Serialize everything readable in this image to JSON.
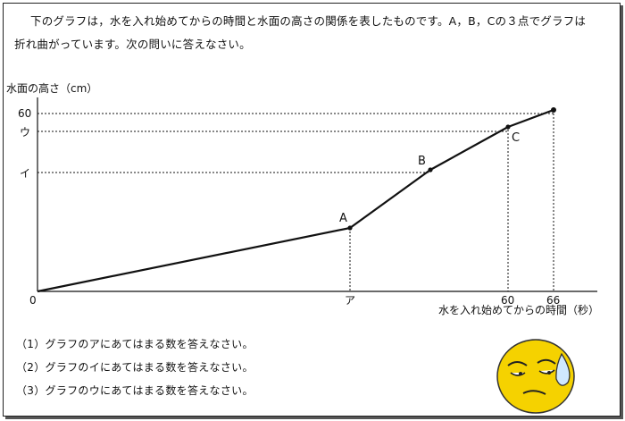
{
  "problem": {
    "intro_line1": "下のグラフは，水を入れ始めてからの時間と水面の高さの関係を表したものです。A，B，Cの３点でグラフは",
    "intro_line2": "折れ曲がっています。次の問いに答えなさい。"
  },
  "chart_data": {
    "type": "line",
    "ylabel": "水面の高さ（cm）",
    "xlabel": "水を入れ始めてからの時間（秒）",
    "origin_label": "0",
    "x_tick_labels": [
      "ア",
      "60",
      "66"
    ],
    "y_tick_labels": [
      "60",
      "ウ",
      "イ"
    ],
    "series": [
      {
        "points": [
          {
            "x": 0,
            "y": 0,
            "label": ""
          },
          {
            "x": "ア",
            "y": null,
            "label": "A"
          },
          {
            "x": null,
            "y": "イ",
            "label": "B"
          },
          {
            "x": 60,
            "y": "ウ",
            "label": "C"
          },
          {
            "x": 66,
            "y": 60,
            "label": ""
          }
        ]
      }
    ],
    "grid": false
  },
  "questions": [
    "（1）グラフのアにあてはまる数を答えなさい。",
    "（2）グラフのイにあてはまる数を答えなさい。",
    "（3）グラフのウにあてはまる数を答えなさい。"
  ],
  "mascot": {
    "icon": "sweating-face-icon",
    "color": "#f5d200"
  }
}
